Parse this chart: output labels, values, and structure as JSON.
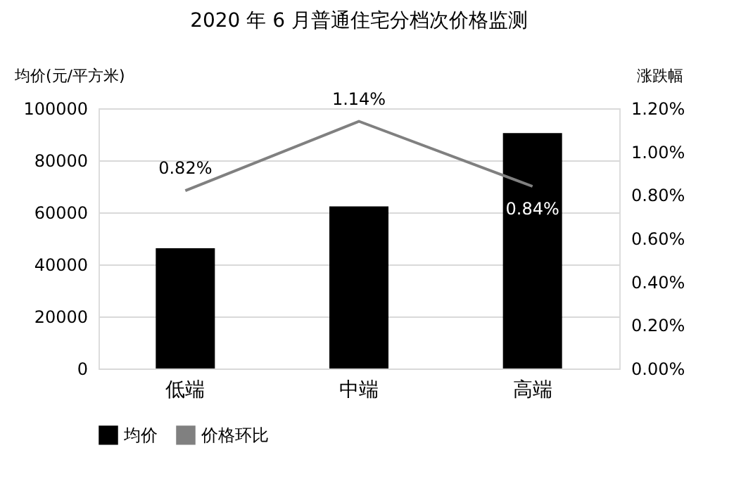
{
  "chart_data": {
    "type": "bar",
    "title": "2020 年 6 月普通住宅分档次价格监测",
    "categories": [
      "低端",
      "中端",
      "高端"
    ],
    "ylabel": "均价(元/平方米)",
    "y2label": "涨跌幅",
    "ylim": [
      0,
      100000
    ],
    "yticks": [
      0,
      20000,
      40000,
      60000,
      80000,
      100000
    ],
    "y2lim": [
      0,
      1.2
    ],
    "y2ticks": [
      {
        "value": 0,
        "label": "0.00%"
      },
      {
        "value": 0.2,
        "label": "0.20%"
      },
      {
        "value": 0.4,
        "label": "0.40%"
      },
      {
        "value": 0.6,
        "label": "0.60%"
      },
      {
        "value": 0.8,
        "label": "0.80%"
      },
      {
        "value": 1.0,
        "label": "1.00%"
      },
      {
        "value": 1.2,
        "label": "1.20%"
      }
    ],
    "series": [
      {
        "name": "均价",
        "color": "#000000",
        "values": [
          46200,
          62300,
          90500
        ]
      },
      {
        "name": "价格环比",
        "type": "line",
        "axis": "y2",
        "color": "#808080",
        "marker": "none",
        "values": [
          0.82,
          1.14,
          0.84
        ],
        "value_labels": [
          "0.82%",
          "1.14%",
          "0.84%"
        ]
      }
    ],
    "grid": "y",
    "legend": "bottom"
  }
}
